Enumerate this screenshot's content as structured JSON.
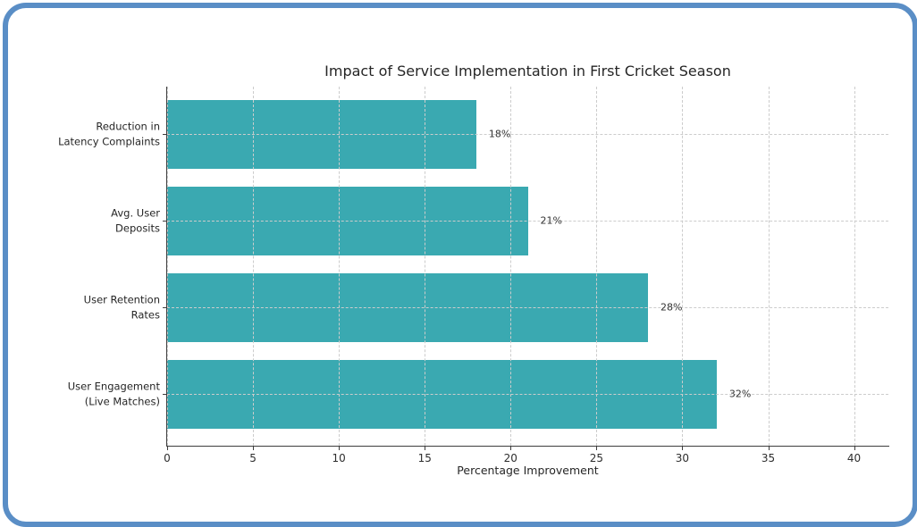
{
  "window": {
    "background_color": "#ffffff",
    "frame_border_color": "#5a8ec6"
  },
  "chart_data": {
    "type": "bar",
    "orientation": "horizontal",
    "title": "Impact of Service Implementation in First Cricket Season",
    "xlabel": "Percentage Improvement",
    "ylabel": "",
    "categories": [
      "Reduction in\nLatency Complaints",
      "Avg. User\nDeposits",
      "User Retention\nRates",
      "User Engagement\n(Live Matches)"
    ],
    "values": [
      18,
      21,
      28,
      32
    ],
    "value_labels": [
      "18%",
      "21%",
      "28%",
      "32%"
    ],
    "xlim": [
      0,
      42
    ],
    "xticks": [
      0,
      5,
      10,
      15,
      20,
      25,
      30,
      35,
      40
    ],
    "grid": "dashed gridlines on both axes, drawn above bars",
    "legend_position": "none",
    "colors": {
      "bar": "#3aa9b1",
      "grid": "#cccccc",
      "spine": "#3d3d3d",
      "text": "#262626"
    }
  }
}
